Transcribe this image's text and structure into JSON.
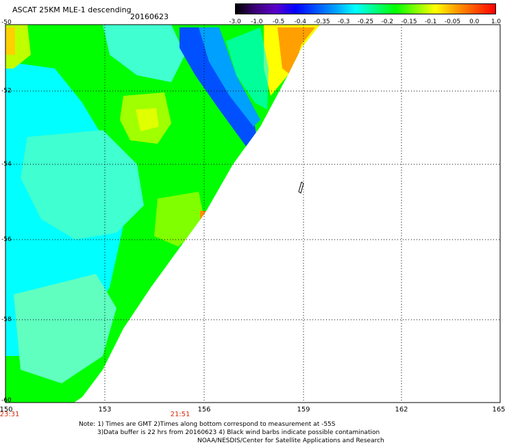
{
  "title": "ASCAT 25KM MLE-1 descending",
  "date": "20160623",
  "colorbar": {
    "ticks": [
      "-3.0",
      "-1.0",
      "-0.5",
      "-0.4",
      "-0.35",
      "-0.3",
      "-0.25",
      "-0.2",
      "-0.15",
      "-0.1",
      "-0.05",
      "0.0",
      "1.0"
    ],
    "colors": [
      "#000000",
      "#3c0078",
      "#5a00c8",
      "#0000ff",
      "#0050ff",
      "#00a0ff",
      "#00ffff",
      "#00ff80",
      "#00ff00",
      "#80ff00",
      "#ffff00",
      "#ffa000",
      "#ff5000",
      "#ff0000"
    ]
  },
  "axes": {
    "lat_labels": [
      "-50",
      "-52",
      "-54",
      "-56",
      "-58",
      "-60"
    ],
    "lon_labels": [
      "150",
      "153",
      "156",
      "159",
      "162",
      "165"
    ]
  },
  "times": [
    "23:31",
    "21:51"
  ],
  "notes": {
    "line1": "Note: 1) Times are GMT 2)Times along bottom correspond to measurement at -55S",
    "line2": "3)Data buffer is 22 hrs from 20160623 4) Black wind barbs indicate possible contamination",
    "line3": "NOAA/NESDIS/Center for Satellite Applications and Research"
  },
  "colors": {
    "cyan": "#00ffff",
    "light_cyan": "#40ffd0",
    "green": "#00ff00",
    "lime": "#80ff00",
    "yellow": "#ffff00",
    "orange": "#ffa000",
    "blue": "#0050ff",
    "time_red": "#d42a0a"
  }
}
